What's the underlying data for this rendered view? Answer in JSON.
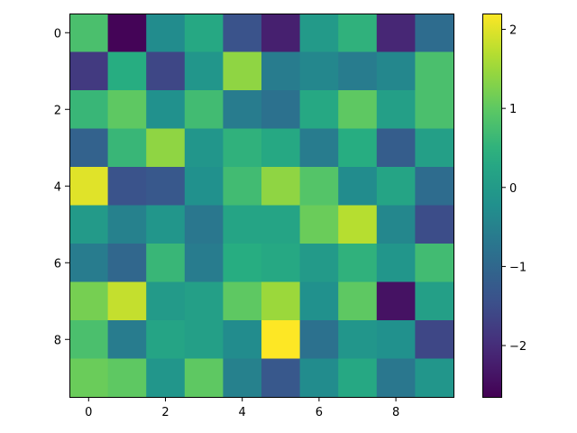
{
  "chart_data": {
    "type": "heatmap",
    "title": "",
    "xlabel": "",
    "ylabel": "",
    "rows": 10,
    "cols": 10,
    "x_ticks": [
      0,
      2,
      4,
      6,
      8
    ],
    "y_ticks": [
      0,
      2,
      4,
      6,
      8
    ],
    "values": [
      [
        0.8,
        -2.6,
        -0.3,
        0.3,
        -1.4,
        -2.2,
        0.0,
        0.5,
        -2.1,
        -0.9
      ],
      [
        -1.8,
        0.4,
        -1.6,
        -0.1,
        1.4,
        -0.6,
        -0.4,
        -0.6,
        -0.4,
        0.8
      ],
      [
        0.6,
        1.0,
        -0.2,
        0.7,
        -0.6,
        -0.8,
        0.3,
        1.0,
        0.1,
        0.8
      ],
      [
        -1.1,
        0.6,
        1.4,
        -0.1,
        0.5,
        0.3,
        -0.6,
        0.4,
        -1.2,
        0.1
      ],
      [
        2.0,
        -1.4,
        -1.3,
        -0.2,
        0.7,
        1.4,
        0.9,
        -0.3,
        0.2,
        -0.9
      ],
      [
        0.0,
        -0.5,
        -0.1,
        -0.7,
        0.2,
        0.2,
        1.1,
        1.7,
        -0.4,
        -1.5
      ],
      [
        -0.6,
        -1.0,
        0.6,
        -0.6,
        0.4,
        0.3,
        0.0,
        0.5,
        -0.1,
        0.7
      ],
      [
        1.2,
        1.8,
        0.0,
        0.1,
        1.0,
        1.5,
        -0.2,
        1.0,
        -2.4,
        0.1
      ],
      [
        0.8,
        -0.6,
        0.2,
        0.1,
        -0.3,
        2.2,
        -0.8,
        -0.1,
        -0.2,
        -1.6
      ],
      [
        1.1,
        1.0,
        -0.1,
        1.0,
        -0.5,
        -1.3,
        -0.3,
        0.3,
        -0.7,
        -0.1
      ]
    ],
    "colormap": "viridis",
    "vmin": -2.65,
    "vmax": 2.2,
    "colorbar_ticks": [
      2,
      1,
      0,
      -1,
      -2
    ],
    "colorbar_labels": [
      "2",
      "1",
      "0",
      "−1",
      "−2"
    ],
    "grid": false
  }
}
